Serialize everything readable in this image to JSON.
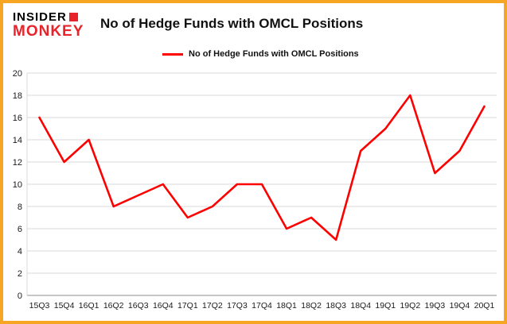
{
  "logo": {
    "line1": "INSIDER",
    "line2": "MONKEY"
  },
  "header": {
    "title": "No of Hedge Funds with OMCL Positions"
  },
  "legend": {
    "label": "No of Hedge Funds with OMCL Positions",
    "color": "#ff0000"
  },
  "colors": {
    "frame_border": "#f7a623",
    "series_line": "#ff0000",
    "gridline": "#d9d9d9",
    "axis_line": "#8c8c8c",
    "tick_text": "#1a1a1a",
    "logo_red": "#e8232a"
  },
  "chart_data": {
    "type": "line",
    "title": "No of Hedge Funds with OMCL Positions",
    "categories": [
      "15Q3",
      "15Q4",
      "16Q1",
      "16Q2",
      "16Q3",
      "16Q4",
      "17Q1",
      "17Q2",
      "17Q3",
      "17Q4",
      "18Q1",
      "18Q2",
      "18Q3",
      "18Q4",
      "19Q1",
      "19Q2",
      "19Q3",
      "19Q4",
      "20Q1"
    ],
    "values": [
      16,
      12,
      14,
      8,
      9,
      10,
      7,
      8,
      10,
      10,
      6,
      7,
      5,
      13,
      15,
      18,
      11,
      13,
      17
    ],
    "series_name": "No of Hedge Funds with OMCL Positions",
    "xlabel": "",
    "ylabel": "",
    "ylim": [
      0,
      20
    ],
    "ytick_step": 2,
    "yticks": [
      0,
      2,
      4,
      6,
      8,
      10,
      12,
      14,
      16,
      18,
      20
    ],
    "grid": true,
    "legend_position": "top-center"
  }
}
